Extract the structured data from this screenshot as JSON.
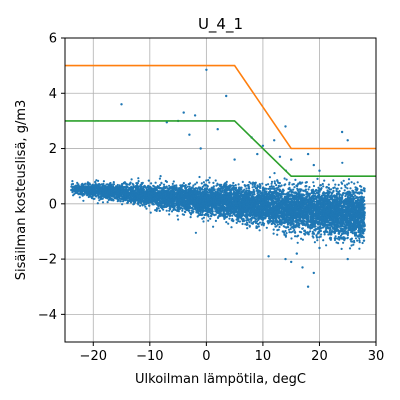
{
  "chart_data": {
    "type": "scatter",
    "title": "U_4_1",
    "xlabel": "Ulkoilman lämpötila, degC",
    "ylabel": "Sisäilman kosteuslisä, g/m3",
    "xlim": [
      -25,
      30
    ],
    "ylim": [
      -5,
      6
    ],
    "x_ticks": [
      -20,
      -10,
      0,
      10,
      20,
      30
    ],
    "y_ticks": [
      -4,
      -2,
      0,
      2,
      4,
      6
    ],
    "x_tick_labels": [
      "−20",
      "−10",
      "0",
      "10",
      "20",
      "30"
    ],
    "y_tick_labels": [
      "−4",
      "−2",
      "0",
      "2",
      "4",
      "6"
    ],
    "grid": true,
    "colors": {
      "scatter": "#1f77b4",
      "upper_limit": "#ff7f0e",
      "lower_limit": "#2ca02c"
    },
    "limit_lines": [
      {
        "x": [
          -25,
          5,
          15,
          30
        ],
        "y": [
          5,
          5,
          2,
          2
        ]
      },
      {
        "x": [
          -25,
          5,
          15,
          30
        ],
        "y": [
          3,
          3,
          1,
          1
        ]
      }
    ],
    "scatter_trend": {
      "x_range": [
        -24,
        28
      ],
      "center_at_x_min": 0.55,
      "center_at_x_max": -0.4,
      "spread_at_x_min": 0.1,
      "spread_at_x_max": 0.45,
      "point_count": 9000
    },
    "scatter_outliers": [
      [
        0,
        4.85
      ],
      [
        3.5,
        3.9
      ],
      [
        -15,
        3.6
      ],
      [
        -4,
        3.3
      ],
      [
        -7,
        2.95
      ],
      [
        -5,
        3.0
      ],
      [
        -2,
        3.2
      ],
      [
        -3,
        2.5
      ],
      [
        8,
        2.4
      ],
      [
        10,
        2.1
      ],
      [
        12,
        2.3
      ],
      [
        14,
        2.8
      ],
      [
        9,
        1.8
      ],
      [
        13,
        1.7
      ],
      [
        15,
        1.6
      ],
      [
        19,
        1.4
      ],
      [
        18,
        1.8
      ],
      [
        24,
        2.6
      ],
      [
        25,
        2.3
      ],
      [
        20,
        1.2
      ],
      [
        -1,
        2.0
      ],
      [
        2,
        2.7
      ],
      [
        5,
        1.6
      ],
      [
        16,
        -1.8
      ],
      [
        17,
        -2.3
      ],
      [
        18,
        -3.0
      ],
      [
        15,
        -2.1
      ],
      [
        20,
        -1.6
      ],
      [
        25,
        -2.0
      ],
      [
        19,
        -2.5
      ],
      [
        11,
        -1.9
      ],
      [
        14,
        -2.0
      ],
      [
        -20,
        0.3
      ],
      [
        -22,
        0.7
      ],
      [
        28,
        -0.8
      ],
      [
        22,
        -1.3
      ]
    ]
  }
}
